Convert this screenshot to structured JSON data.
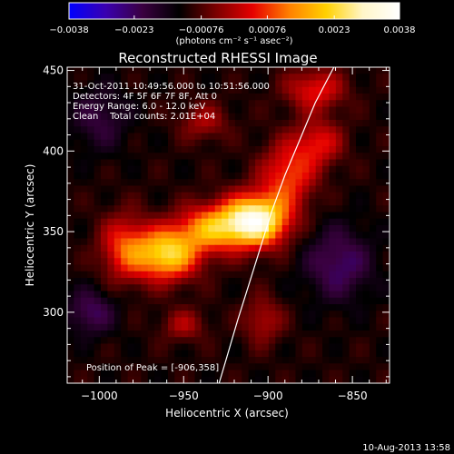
{
  "chart_data": {
    "type": "heatmap",
    "title": "Reconstructed RHESSI Image",
    "xlabel": "Heliocentric X (arcsec)",
    "ylabel": "Heliocentric Y (arcsec)",
    "xlim": [
      -1019,
      -828
    ],
    "ylim": [
      256,
      452
    ],
    "x_ticks": [
      -1000,
      -950,
      -900,
      -850
    ],
    "y_ticks": [
      300,
      350,
      400,
      450
    ],
    "x_tick_labels": [
      "−1000",
      "−950",
      "−900",
      "−850"
    ],
    "y_tick_labels": [
      "300",
      "350",
      "400",
      "450"
    ],
    "colorbar": {
      "min": -0.0038,
      "max": 0.0038,
      "tick_values": [
        -0.0038,
        -0.0023,
        -0.00076,
        0.00076,
        0.0023,
        0.0038
      ],
      "tick_labels": [
        "−0.0038",
        "−0.0023",
        "−0.00076",
        "0.00076",
        "0.0023",
        "0.0038"
      ],
      "units_label": "(photons cm⁻² s⁻¹ asec⁻²)",
      "colormap": [
        "#0000ff",
        "#3a00b0",
        "#3a0040",
        "#000000",
        "#7a0000",
        "#e60000",
        "#ff8000",
        "#ffd000",
        "#fff6c8",
        "#ffffff"
      ]
    },
    "info_lines": [
      "31-Oct-2011 10:49:56.000 to 10:51:56.000",
      "Detectors: 4F 5F 6F 7F 8F, Att 0",
      "Energy Range: 6.0 - 12.0 keV",
      "Clean    Total counts: 2.01E+04"
    ],
    "peak_label": "Position of Peak = [-906,358]",
    "limb_curve": [
      [
        -861,
        452
      ],
      [
        -872,
        430
      ],
      [
        -880,
        410
      ],
      [
        -890,
        385
      ],
      [
        -898,
        362
      ],
      [
        -906,
        335
      ],
      [
        -912,
        315
      ],
      [
        -918,
        295
      ],
      [
        -925,
        270
      ],
      [
        -929,
        256
      ]
    ],
    "sources": [
      {
        "x": -907,
        "y": 357,
        "sx": 13,
        "sy": 11,
        "amp": 0.0044
      },
      {
        "x": -933,
        "y": 352,
        "sx": 14,
        "sy": 10,
        "amp": 0.0026
      },
      {
        "x": -960,
        "y": 336,
        "sx": 13,
        "sy": 11,
        "amp": 0.0034
      },
      {
        "x": -985,
        "y": 340,
        "sx": 10,
        "sy": 14,
        "amp": 0.0018
      },
      {
        "x": -888,
        "y": 385,
        "sx": 11,
        "sy": 14,
        "amp": 0.0019
      },
      {
        "x": -870,
        "y": 405,
        "sx": 10,
        "sy": 10,
        "amp": 0.0015
      },
      {
        "x": -872,
        "y": 438,
        "sx": 12,
        "sy": 9,
        "amp": 0.0016
      },
      {
        "x": -950,
        "y": 292,
        "sx": 9,
        "sy": 7,
        "amp": 0.001
      },
      {
        "x": -903,
        "y": 295,
        "sx": 8,
        "sy": 10,
        "amp": 0.0011
      },
      {
        "x": -938,
        "y": 418,
        "sx": 10,
        "sy": 8,
        "amp": 0.001
      },
      {
        "x": -1005,
        "y": 300,
        "sx": 10,
        "sy": 10,
        "amp": -0.0012
      },
      {
        "x": -858,
        "y": 330,
        "sx": 14,
        "sy": 16,
        "amp": -0.0013
      },
      {
        "x": -1000,
        "y": 420,
        "sx": 12,
        "sy": 14,
        "amp": -0.0009
      }
    ],
    "grid": false
  },
  "footer": {
    "timestamp": "10-Aug-2013 13:58"
  }
}
